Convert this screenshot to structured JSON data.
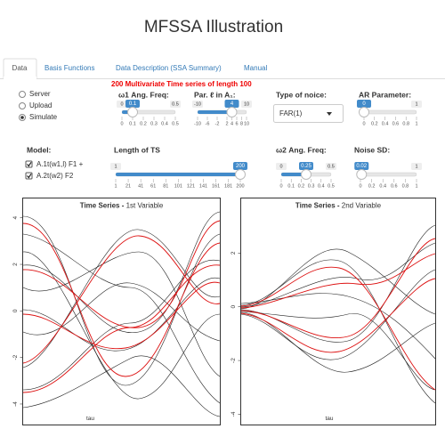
{
  "header": {
    "title": "MFSSA Illustration"
  },
  "tabs": [
    "Data",
    "Basis Functions",
    "Data Description (SSA Summary)",
    "Manual"
  ],
  "source": {
    "options": [
      "Server",
      "Upload",
      "Simulate"
    ]
  },
  "message": "200 Multivariate Time series of length 100",
  "noise_type": {
    "label": "Type of noice:",
    "value": "FAR(1)"
  },
  "model": {
    "label": "Model:",
    "options": [
      "A.1t(w1,l) F1 +",
      "A.2t(w2) F2"
    ]
  },
  "sliders": [
    {
      "label": "ω1 Ang. Freq:",
      "min": 0,
      "max": 0.5,
      "value": 0.1,
      "ticks": [
        0,
        0.1,
        0.2,
        0.3,
        0.4,
        0.5
      ]
    },
    {
      "label": "Par. ℓ in A₁:",
      "min": -10,
      "max": 10,
      "value": 4,
      "ticks": [
        -10,
        -6,
        -2,
        2,
        4,
        6,
        8,
        10
      ]
    },
    {
      "label": "AR Parameter:",
      "min": 0,
      "max": 1,
      "value": 0,
      "ticks": [
        0,
        0.2,
        0.4,
        0.6,
        0.8,
        1
      ]
    },
    {
      "label": "Length of TS",
      "min": 1,
      "max": 200,
      "value": 200,
      "ticks": [
        1,
        21,
        41,
        61,
        81,
        101,
        121,
        141,
        161,
        181,
        200
      ]
    },
    {
      "label": "ω2 Ang. Freq:",
      "min": 0,
      "max": 0.5,
      "value": 0.25,
      "ticks": [
        0,
        0.1,
        0.2,
        0.3,
        0.4,
        0.5
      ]
    },
    {
      "label": "Noise SD:",
      "min": 0,
      "max": 1,
      "value": 0.02,
      "ticks": [
        0,
        0.2,
        0.4,
        0.6,
        0.8,
        1
      ]
    }
  ],
  "plots": [
    {
      "title": "Time Series - ",
      "subtitle": "1st Variable",
      "xlabel": "tau",
      "ylim": [
        -4.9,
        4.85
      ],
      "yticks": [
        -4,
        -2,
        0,
        2,
        4
      ]
    },
    {
      "title": "Time Series - ",
      "subtitle": "2nd Variable",
      "xlabel": "tau",
      "ylim": [
        -4.4,
        4.05
      ],
      "yticks": [
        -4,
        -2,
        0,
        2
      ]
    }
  ]
}
